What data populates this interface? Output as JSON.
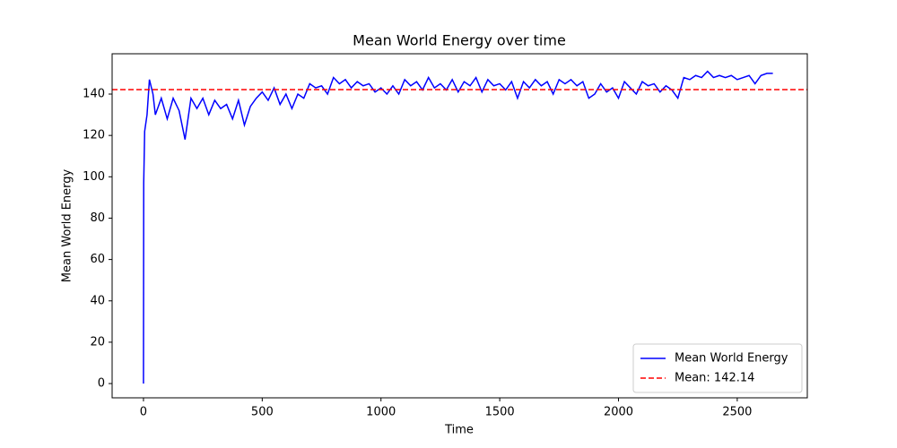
{
  "chart_data": {
    "type": "line",
    "title": "Mean World Energy over time",
    "x_label": "Time",
    "y_label": "Mean World Energy",
    "x": [
      0,
      1,
      5,
      15,
      25,
      40,
      50,
      75,
      100,
      125,
      150,
      175,
      200,
      225,
      250,
      275,
      300,
      325,
      350,
      375,
      400,
      425,
      450,
      475,
      500,
      525,
      550,
      575,
      600,
      625,
      650,
      675,
      700,
      725,
      750,
      775,
      800,
      825,
      850,
      875,
      900,
      925,
      950,
      975,
      1000,
      1025,
      1050,
      1075,
      1100,
      1125,
      1150,
      1175,
      1200,
      1225,
      1250,
      1275,
      1300,
      1325,
      1350,
      1375,
      1400,
      1425,
      1450,
      1475,
      1500,
      1525,
      1550,
      1575,
      1600,
      1625,
      1650,
      1675,
      1700,
      1725,
      1750,
      1775,
      1800,
      1825,
      1850,
      1875,
      1900,
      1925,
      1950,
      1975,
      2000,
      2025,
      2050,
      2075,
      2100,
      2125,
      2150,
      2175,
      2200,
      2225,
      2250,
      2275,
      2300,
      2325,
      2350,
      2375,
      2400,
      2425,
      2450,
      2475,
      2500,
      2525,
      2550,
      2575,
      2600,
      2625,
      2650
    ],
    "series": [
      {
        "name": "Mean World Energy",
        "color": "#0000ff",
        "values": [
          0,
          97,
          122,
          130,
          147,
          140,
          130,
          138,
          128,
          138,
          132,
          118,
          138,
          133,
          138,
          130,
          137,
          133,
          135,
          128,
          137,
          125,
          134,
          138,
          141,
          137,
          143,
          135,
          140,
          133,
          140,
          138,
          145,
          143,
          144,
          140,
          148,
          145,
          147,
          143,
          146,
          144,
          145,
          141,
          143,
          140,
          144,
          140,
          147,
          144,
          146,
          142,
          148,
          143,
          145,
          142,
          147,
          141,
          146,
          144,
          148,
          141,
          147,
          144,
          145,
          142,
          146,
          138,
          146,
          143,
          147,
          144,
          146,
          140,
          147,
          145,
          147,
          144,
          146,
          138,
          140,
          145,
          141,
          143,
          138,
          146,
          143,
          140,
          146,
          144,
          145,
          141,
          144,
          142,
          138,
          148,
          147,
          149,
          148,
          151,
          148,
          149,
          148,
          149,
          147,
          148,
          149,
          145,
          149,
          150,
          150
        ]
      }
    ],
    "mean_line": {
      "value": 142.14,
      "label": "Mean: 142.14",
      "color": "#ff0000"
    },
    "xlim": [
      -132,
      2795
    ],
    "ylim": [
      -6.9,
      159.5
    ],
    "xticks": [
      0,
      500,
      1000,
      1500,
      2000,
      2500
    ],
    "yticks": [
      0,
      20,
      40,
      60,
      80,
      100,
      120,
      140
    ],
    "legend": "lower right"
  }
}
